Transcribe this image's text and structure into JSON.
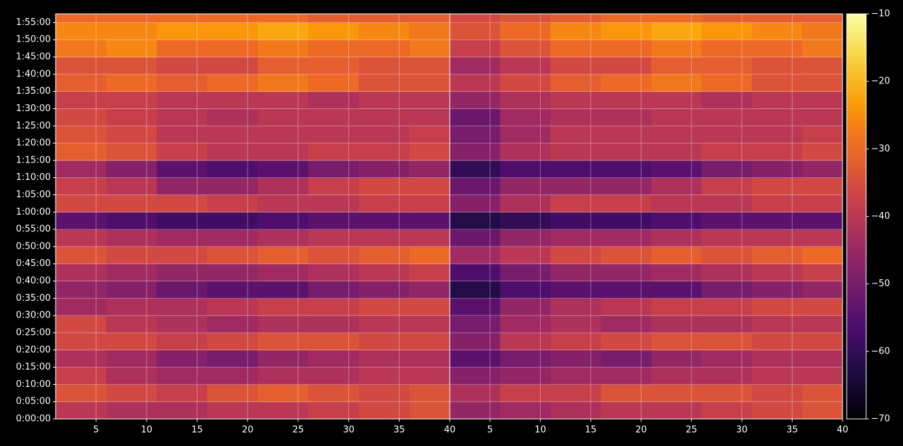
{
  "chart_data": [
    {
      "type": "heatmap",
      "xlim": [
        1,
        40
      ],
      "ylim": [
        0,
        7050
      ],
      "xticks": [
        5,
        10,
        15,
        20,
        25,
        30,
        35,
        40
      ],
      "yticks": [
        {
          "value": 0,
          "label": "0:00:00"
        },
        {
          "value": 300,
          "label": "0:05:00"
        },
        {
          "value": 600,
          "label": "0:10:00"
        },
        {
          "value": 900,
          "label": "0:15:00"
        },
        {
          "value": 1200,
          "label": "0:20:00"
        },
        {
          "value": 1500,
          "label": "0:25:00"
        },
        {
          "value": 1800,
          "label": "0:30:00"
        },
        {
          "value": 2100,
          "label": "0:35:00"
        },
        {
          "value": 2400,
          "label": "0:40:00"
        },
        {
          "value": 2700,
          "label": "0:45:00"
        },
        {
          "value": 3000,
          "label": "0:50:00"
        },
        {
          "value": 3300,
          "label": "0:55:00"
        },
        {
          "value": 3600,
          "label": "1:00:00"
        },
        {
          "value": 3900,
          "label": "1:05:00"
        },
        {
          "value": 4200,
          "label": "1:10:00"
        },
        {
          "value": 4500,
          "label": "1:15:00"
        },
        {
          "value": 4800,
          "label": "1:20:00"
        },
        {
          "value": 5100,
          "label": "1:25:00"
        },
        {
          "value": 5400,
          "label": "1:30:00"
        },
        {
          "value": 5700,
          "label": "1:35:00"
        },
        {
          "value": 6000,
          "label": "1:40:00"
        },
        {
          "value": 6300,
          "label": "1:45:00"
        },
        {
          "value": 6600,
          "label": "1:50:00"
        },
        {
          "value": 6900,
          "label": "1:55:00"
        }
      ],
      "grid": true,
      "xbins": [
        1,
        6,
        11,
        16,
        21,
        26,
        31,
        36,
        40
      ],
      "ybins": [
        0,
        300,
        600,
        900,
        1200,
        1500,
        1800,
        2100,
        2400,
        2700,
        3000,
        3300,
        3600,
        3900,
        4200,
        4500,
        4800,
        5100,
        5400,
        5700,
        6000,
        6300,
        6600,
        6900,
        7050
      ],
      "clim": [
        -70,
        -10
      ],
      "colorscale": [
        "#000004",
        "#1b0c41",
        "#4a0c6b",
        "#781c6d",
        "#a52c60",
        "#cf4446",
        "#ed6925",
        "#fb9b06",
        "#f7d13d",
        "#fcffa4"
      ],
      "colorbar_ticks": [
        {
          "value": -10,
          "label": "−10"
        },
        {
          "value": -20,
          "label": "−20"
        },
        {
          "value": -30,
          "label": "−30"
        },
        {
          "value": -40,
          "label": "−40"
        },
        {
          "value": -50,
          "label": "−50"
        },
        {
          "value": -60,
          "label": "−60"
        },
        {
          "value": -70,
          "label": "−70"
        }
      ],
      "values": [
        [
          -40,
          -42,
          -42,
          -40,
          -40,
          -38,
          -36,
          -34
        ],
        [
          -34,
          -36,
          -38,
          -34,
          -32,
          -34,
          -36,
          -34
        ],
        [
          -38,
          -42,
          -44,
          -44,
          -42,
          -42,
          -40,
          -40
        ],
        [
          -42,
          -44,
          -48,
          -50,
          -46,
          -44,
          -42,
          -42
        ],
        [
          -36,
          -36,
          -38,
          -36,
          -34,
          -34,
          -36,
          -36
        ],
        [
          -36,
          -40,
          -42,
          -44,
          -42,
          -42,
          -40,
          -40
        ],
        [
          -44,
          -42,
          -42,
          -40,
          -38,
          -38,
          -36,
          -36
        ],
        [
          -46,
          -48,
          -52,
          -54,
          -54,
          -50,
          -48,
          -46
        ],
        [
          -42,
          -44,
          -46,
          -46,
          -44,
          -42,
          -40,
          -38
        ],
        [
          -34,
          -36,
          -36,
          -34,
          -32,
          -34,
          -32,
          -30
        ],
        [
          -40,
          -42,
          -44,
          -44,
          -42,
          -40,
          -40,
          -40
        ],
        [
          -54,
          -56,
          -58,
          -58,
          -56,
          -54,
          -54,
          -54
        ],
        [
          -36,
          -36,
          -36,
          -38,
          -40,
          -40,
          -38,
          -38
        ],
        [
          -38,
          -40,
          -46,
          -46,
          -42,
          -38,
          -36,
          -36
        ],
        [
          -44,
          -48,
          -54,
          -56,
          -54,
          -50,
          -48,
          -46
        ],
        [
          -32,
          -34,
          -38,
          -40,
          -40,
          -38,
          -38,
          -36
        ],
        [
          -34,
          -36,
          -40,
          -40,
          -40,
          -40,
          -40,
          -38
        ],
        [
          -36,
          -38,
          -40,
          -42,
          -40,
          -40,
          -40,
          -40
        ],
        [
          -38,
          -38,
          -40,
          -40,
          -40,
          -42,
          -40,
          -40
        ],
        [
          -32,
          -30,
          -32,
          -30,
          -28,
          -30,
          -34,
          -34
        ],
        [
          -34,
          -34,
          -36,
          -36,
          -32,
          -32,
          -34,
          -34
        ],
        [
          -28,
          -26,
          -30,
          -30,
          -28,
          -30,
          -30,
          -28
        ],
        [
          -26,
          -26,
          -24,
          -24,
          -22,
          -24,
          -26,
          -28
        ],
        [
          -30,
          -30,
          -30,
          -30,
          -30,
          -32,
          -32,
          -32
        ]
      ]
    },
    {
      "type": "heatmap",
      "xlim": [
        1,
        40
      ],
      "ylim": [
        0,
        7050
      ],
      "xticks": [
        5,
        10,
        15,
        20,
        25,
        30,
        35,
        40
      ],
      "grid": true,
      "xbins": [
        1,
        6,
        11,
        16,
        21,
        26,
        31,
        36,
        40
      ],
      "ybins": [
        0,
        300,
        600,
        900,
        1200,
        1500,
        1800,
        2100,
        2400,
        2700,
        3000,
        3300,
        3600,
        3900,
        4200,
        4500,
        4800,
        5100,
        5400,
        5700,
        6000,
        6300,
        6600,
        6900,
        7050
      ],
      "values": [
        [
          -46,
          -44,
          -42,
          -40,
          -40,
          -38,
          -36,
          -34
        ],
        [
          -42,
          -38,
          -38,
          -34,
          -34,
          -34,
          -36,
          -34
        ],
        [
          -48,
          -46,
          -44,
          -44,
          -42,
          -42,
          -40,
          -40
        ],
        [
          -54,
          -50,
          -48,
          -50,
          -46,
          -44,
          -42,
          -42
        ],
        [
          -48,
          -40,
          -38,
          -36,
          -34,
          -34,
          -36,
          -36
        ],
        [
          -50,
          -44,
          -42,
          -44,
          -42,
          -42,
          -40,
          -40
        ],
        [
          -54,
          -46,
          -42,
          -40,
          -38,
          -38,
          -36,
          -36
        ],
        [
          -62,
          -56,
          -54,
          -54,
          -54,
          -50,
          -48,
          -46
        ],
        [
          -56,
          -50,
          -46,
          -46,
          -44,
          -42,
          -40,
          -38
        ],
        [
          -44,
          -40,
          -36,
          -34,
          -32,
          -34,
          -32,
          -30
        ],
        [
          -52,
          -46,
          -44,
          -44,
          -42,
          -40,
          -40,
          -40
        ],
        [
          -62,
          -60,
          -58,
          -58,
          -56,
          -54,
          -54,
          -54
        ],
        [
          -48,
          -42,
          -38,
          -38,
          -40,
          -40,
          -38,
          -38
        ],
        [
          -52,
          -46,
          -46,
          -46,
          -42,
          -38,
          -36,
          -36
        ],
        [
          -60,
          -56,
          -56,
          -56,
          -54,
          -50,
          -48,
          -46
        ],
        [
          -48,
          -42,
          -40,
          -40,
          -40,
          -38,
          -38,
          -36
        ],
        [
          -50,
          -44,
          -40,
          -40,
          -40,
          -40,
          -40,
          -38
        ],
        [
          -52,
          -44,
          -42,
          -42,
          -40,
          -40,
          -40,
          -40
        ],
        [
          -46,
          -42,
          -40,
          -40,
          -40,
          -42,
          -40,
          -40
        ],
        [
          -40,
          -36,
          -32,
          -30,
          -28,
          -30,
          -34,
          -34
        ],
        [
          -44,
          -40,
          -36,
          -36,
          -32,
          -32,
          -34,
          -34
        ],
        [
          -38,
          -34,
          -30,
          -30,
          -28,
          -30,
          -30,
          -28
        ],
        [
          -34,
          -30,
          -26,
          -24,
          -22,
          -24,
          -26,
          -28
        ],
        [
          -36,
          -34,
          -32,
          -30,
          -30,
          -32,
          -32,
          -32
        ]
      ]
    }
  ]
}
